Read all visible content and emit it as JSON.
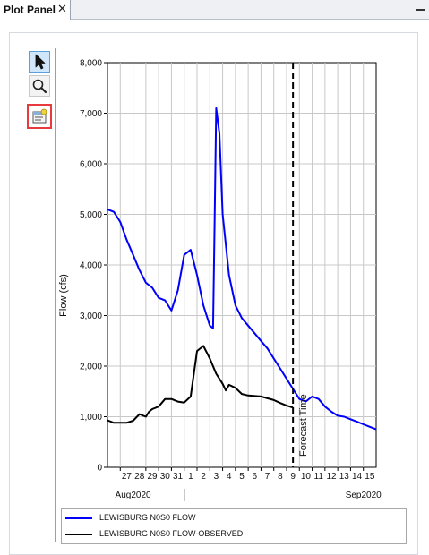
{
  "panel": {
    "tab_title": "Plot Panel",
    "close_glyph": "✕"
  },
  "toolbar": {
    "tools": [
      {
        "name": "select-tool",
        "icon": "arrow-pointer-icon",
        "selected": true
      },
      {
        "name": "zoom-tool",
        "icon": "magnifier-icon",
        "selected": false
      },
      {
        "name": "plot-properties-tool",
        "icon": "properties-icon",
        "highlighted": true,
        "highlight_color": "#e8393d"
      }
    ]
  },
  "chart_data": {
    "type": "line",
    "title": "",
    "xlabel": "",
    "ylabel": "Flow (cfs)",
    "ylim": [
      0,
      8000
    ],
    "y_ticks": [
      0,
      1000,
      2000,
      3000,
      4000,
      5000,
      6000,
      7000,
      8000
    ],
    "y_tick_labels": [
      "0",
      "1,000",
      "2,000",
      "3,000",
      "4,000",
      "5,000",
      "6,000",
      "7,000",
      "8,000"
    ],
    "x_range_days": [
      "2020-07-26",
      "2020-08-16"
    ],
    "x_day_ticks": [
      {
        "date": "2020-07-27",
        "label": "27"
      },
      {
        "date": "2020-07-28",
        "label": "28"
      },
      {
        "date": "2020-07-29",
        "label": "29"
      },
      {
        "date": "2020-07-30",
        "label": "30"
      },
      {
        "date": "2020-07-31",
        "label": "31"
      },
      {
        "date": "2020-08-01",
        "label": "1"
      },
      {
        "date": "2020-08-02",
        "label": "2"
      },
      {
        "date": "2020-08-03",
        "label": "3"
      },
      {
        "date": "2020-08-04",
        "label": "4"
      },
      {
        "date": "2020-08-05",
        "label": "5"
      },
      {
        "date": "2020-08-06",
        "label": "6"
      },
      {
        "date": "2020-08-07",
        "label": "7"
      },
      {
        "date": "2020-08-08",
        "label": "8"
      },
      {
        "date": "2020-08-09",
        "label": "9"
      },
      {
        "date": "2020-08-10",
        "label": "10"
      },
      {
        "date": "2020-08-11",
        "label": "11"
      },
      {
        "date": "2020-08-12",
        "label": "12"
      },
      {
        "date": "2020-08-13",
        "label": "13"
      },
      {
        "date": "2020-08-14",
        "label": "14"
      },
      {
        "date": "2020-08-15",
        "label": "15"
      }
    ],
    "x_month_labels": [
      {
        "label": "Aug2020",
        "date": "2020-07-28"
      },
      {
        "label": "Sep2020",
        "date": "2020-08-15"
      }
    ],
    "month_boundary": "2020-08-01",
    "grid": true,
    "legend_position": "bottom",
    "forecast_time": {
      "date": "2020-08-09 12:00",
      "label": "Forecast Time"
    },
    "series": [
      {
        "name": "LEWISBURG N0S0 FLOW",
        "color": "#0000ff",
        "points": [
          [
            "2020-07-26 00:00",
            5100
          ],
          [
            "2020-07-26 12:00",
            5050
          ],
          [
            "2020-07-27 00:00",
            4850
          ],
          [
            "2020-07-27 12:00",
            4500
          ],
          [
            "2020-07-28 00:00",
            4200
          ],
          [
            "2020-07-28 12:00",
            3900
          ],
          [
            "2020-07-29 00:00",
            3650
          ],
          [
            "2020-07-29 12:00",
            3550
          ],
          [
            "2020-07-30 00:00",
            3350
          ],
          [
            "2020-07-30 12:00",
            3300
          ],
          [
            "2020-07-31 00:00",
            3100
          ],
          [
            "2020-07-31 12:00",
            3500
          ],
          [
            "2020-08-01 00:00",
            4200
          ],
          [
            "2020-08-01 12:00",
            4300
          ],
          [
            "2020-08-02 00:00",
            3800
          ],
          [
            "2020-08-02 12:00",
            3200
          ],
          [
            "2020-08-03 00:00",
            2800
          ],
          [
            "2020-08-03 06:00",
            2750
          ],
          [
            "2020-08-03 09:00",
            4800
          ],
          [
            "2020-08-03 12:00",
            7100
          ],
          [
            "2020-08-03 18:00",
            6600
          ],
          [
            "2020-08-04 00:00",
            5000
          ],
          [
            "2020-08-04 12:00",
            3800
          ],
          [
            "2020-08-05 00:00",
            3200
          ],
          [
            "2020-08-05 12:00",
            2950
          ],
          [
            "2020-08-06 00:00",
            2800
          ],
          [
            "2020-08-06 12:00",
            2650
          ],
          [
            "2020-08-07 00:00",
            2500
          ],
          [
            "2020-08-07 12:00",
            2350
          ],
          [
            "2020-08-08 00:00",
            2150
          ],
          [
            "2020-08-08 12:00",
            1950
          ],
          [
            "2020-08-09 00:00",
            1750
          ],
          [
            "2020-08-09 12:00",
            1550
          ],
          [
            "2020-08-10 00:00",
            1350
          ],
          [
            "2020-08-10 12:00",
            1300
          ],
          [
            "2020-08-11 00:00",
            1400
          ],
          [
            "2020-08-11 12:00",
            1350
          ],
          [
            "2020-08-12 00:00",
            1200
          ],
          [
            "2020-08-12 12:00",
            1100
          ],
          [
            "2020-08-13 00:00",
            1020
          ],
          [
            "2020-08-13 12:00",
            1000
          ],
          [
            "2020-08-14 00:00",
            950
          ],
          [
            "2020-08-14 12:00",
            900
          ],
          [
            "2020-08-15 00:00",
            850
          ],
          [
            "2020-08-15 12:00",
            800
          ],
          [
            "2020-08-16 00:00",
            750
          ]
        ]
      },
      {
        "name": "LEWISBURG N0S0 FLOW-OBSERVED",
        "color": "#000000",
        "points": [
          [
            "2020-07-26 00:00",
            930
          ],
          [
            "2020-07-26 12:00",
            880
          ],
          [
            "2020-07-27 00:00",
            880
          ],
          [
            "2020-07-27 12:00",
            880
          ],
          [
            "2020-07-28 00:00",
            920
          ],
          [
            "2020-07-28 12:00",
            1050
          ],
          [
            "2020-07-29 00:00",
            1000
          ],
          [
            "2020-07-29 06:00",
            1100
          ],
          [
            "2020-07-29 12:00",
            1150
          ],
          [
            "2020-07-30 00:00",
            1200
          ],
          [
            "2020-07-30 12:00",
            1350
          ],
          [
            "2020-07-31 00:00",
            1350
          ],
          [
            "2020-07-31 12:00",
            1300
          ],
          [
            "2020-08-01 00:00",
            1280
          ],
          [
            "2020-08-01 12:00",
            1400
          ],
          [
            "2020-08-02 00:00",
            2300
          ],
          [
            "2020-08-02 12:00",
            2400
          ],
          [
            "2020-08-03 00:00",
            2150
          ],
          [
            "2020-08-03 12:00",
            1850
          ],
          [
            "2020-08-04 00:00",
            1650
          ],
          [
            "2020-08-04 06:00",
            1520
          ],
          [
            "2020-08-04 12:00",
            1630
          ],
          [
            "2020-08-05 00:00",
            1570
          ],
          [
            "2020-08-05 12:00",
            1450
          ],
          [
            "2020-08-06 00:00",
            1420
          ],
          [
            "2020-08-07 00:00",
            1400
          ],
          [
            "2020-08-08 00:00",
            1330
          ],
          [
            "2020-08-08 12:00",
            1270
          ],
          [
            "2020-08-09 00:00",
            1220
          ],
          [
            "2020-08-09 12:00",
            1180
          ]
        ]
      }
    ]
  }
}
